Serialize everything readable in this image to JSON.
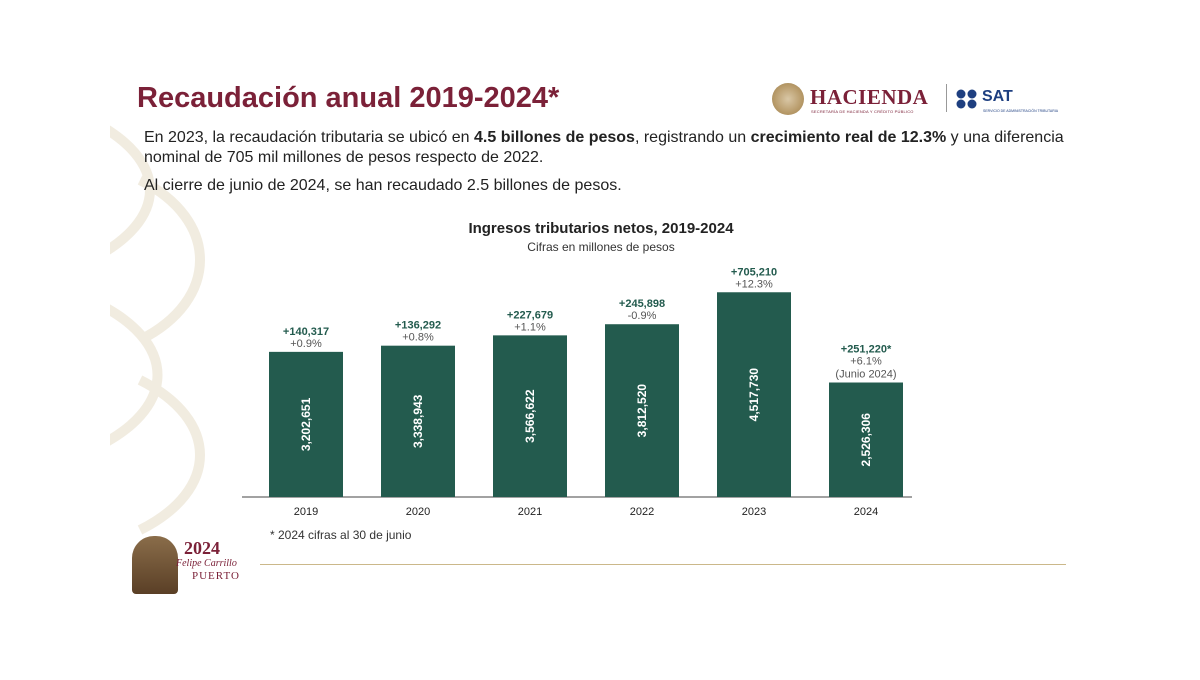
{
  "header": {
    "title": "Recaudación anual 2019-2024*"
  },
  "logos": {
    "hacienda_name": "HACIENDA",
    "hacienda_sub": "SECRETARÍA DE HACIENDA Y CRÉDITO PÚBLICO",
    "sat_name": "SAT",
    "sat_sub": "SERVICIO DE ADMINISTRACIÓN TRIBUTARIA"
  },
  "intro": {
    "p1_a": "En 2023, la recaudación tributaria se ubicó en ",
    "p1_b": "4.5 billones de pesos",
    "p1_c": ", registrando un ",
    "p1_d": "crecimiento real de 12.3%",
    "p1_e": " y una diferencia nominal de 705 mil millones de pesos respecto de 2022.",
    "p2": "Al cierre de junio de 2024, se han recaudado 2.5 billones de pesos."
  },
  "chart_data": {
    "type": "bar",
    "title": "Ingresos tributarios netos, 2019-2024",
    "subtitle": "Cifras en millones de pesos",
    "categories": [
      "2019",
      "2020",
      "2021",
      "2022",
      "2023",
      "2024"
    ],
    "values": [
      3202651,
      3338943,
      3566622,
      3812520,
      4517730,
      2526306
    ],
    "value_labels": [
      "3,202,651",
      "3,338,943",
      "3,566,622",
      "3,812,520",
      "4,517,730",
      "2,526,306"
    ],
    "diff_labels": [
      "+140,317",
      "+136,292",
      "+227,679",
      "+245,898",
      "+705,210",
      "+251,220*"
    ],
    "pct_labels": [
      "+0.9%",
      "+0.8%",
      "+1.1%",
      "-0.9%",
      "+12.3%",
      "+6.1%"
    ],
    "extra_labels": [
      "",
      "",
      "",
      "",
      "",
      "(Junio 2024)"
    ],
    "ylim": [
      0,
      4700000
    ],
    "bar_color": "#235b4e",
    "diff_color": "#235b4e",
    "pct_color": "#555555"
  },
  "footnote": "* 2024 cifras al 30 de junio",
  "emblem": {
    "year": "2024",
    "name": "Felipe Carrillo",
    "last": "PUERTO"
  },
  "colors": {
    "brand": "#7b2138",
    "gold": "#cbb88a"
  }
}
